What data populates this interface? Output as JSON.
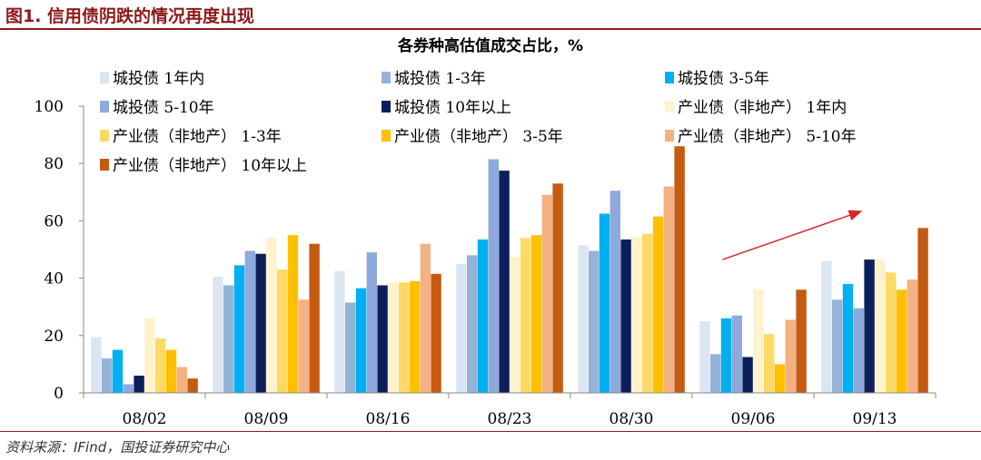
{
  "figure": {
    "title": "图1. 信用债阴跌的情况再度出现",
    "source": "资料来源：IFind，国投证券研究中心"
  },
  "colors": {
    "rule": "#8b1a1a",
    "arrow": "#d42a2a",
    "axis": "#888888"
  },
  "chart_data": {
    "type": "bar",
    "title": "各券种高估值成交占比，%",
    "xlabel": "",
    "ylabel": "",
    "ylim": [
      0,
      100
    ],
    "yticks": [
      0,
      20,
      40,
      60,
      80,
      100
    ],
    "grid": false,
    "legend_position": "top-left",
    "categories": [
      "08/02",
      "08/09",
      "08/16",
      "08/23",
      "08/30",
      "09/06",
      "09/13"
    ],
    "series": [
      {
        "name": "城投债 1年内",
        "color": "#dce6f2",
        "values": [
          19.5,
          40.5,
          42.5,
          45,
          51.5,
          25,
          46
        ]
      },
      {
        "name": "城投债 1-3年",
        "color": "#95b3d7",
        "values": [
          12,
          37.5,
          31.5,
          48,
          49.5,
          13.5,
          32.5
        ]
      },
      {
        "name": "城投债 3-5年",
        "color": "#00b0f0",
        "values": [
          15,
          44.5,
          36.5,
          53.5,
          62.5,
          26,
          38
        ]
      },
      {
        "name": "城投债 5-10年",
        "color": "#8ea9db",
        "values": [
          3,
          49.5,
          49,
          81.5,
          70.5,
          27,
          29.5
        ]
      },
      {
        "name": "城投债 10年以上",
        "color": "#0c1f5b",
        "values": [
          6,
          48.5,
          37.5,
          77.5,
          53.5,
          12.5,
          46.5
        ]
      },
      {
        "name": "产业债（非地产） 1年内",
        "color": "#fff2cc",
        "values": [
          26,
          54,
          38.5,
          47.5,
          54.5,
          36,
          46.5
        ]
      },
      {
        "name": "产业债（非地产） 1-3年",
        "color": "#ffd966",
        "values": [
          19,
          43,
          38.5,
          54,
          55.5,
          20.5,
          42
        ]
      },
      {
        "name": "产业债（非地产） 3-5年",
        "color": "#ffc000",
        "values": [
          15,
          55,
          39,
          55,
          61.5,
          10,
          36
        ]
      },
      {
        "name": "产业债（非地产） 5-10年",
        "color": "#f4b183",
        "values": [
          9,
          32.5,
          52,
          69,
          72,
          25.5,
          39.5
        ]
      },
      {
        "name": "产业债（非地产） 10年以上",
        "color": "#c55a11",
        "values": [
          5,
          52,
          41.5,
          73,
          86,
          36,
          57.5
        ]
      }
    ],
    "annotations": [
      {
        "type": "arrow",
        "description": "rising trend arrow from 09/06 toward 09/13",
        "from": {
          "x": "09/06",
          "y": 46.5
        },
        "to": {
          "x": "09/13",
          "y": 63.5
        }
      }
    ]
  }
}
